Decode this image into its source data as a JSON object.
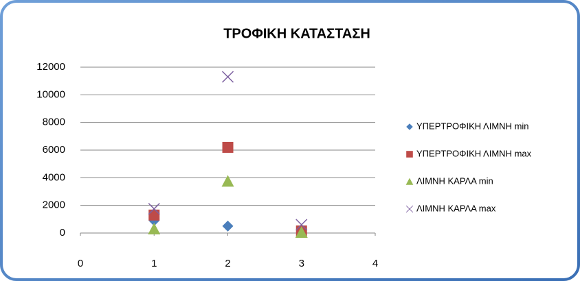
{
  "chart_data": {
    "type": "scatter",
    "title": "ΤΡΟΦΙΚΗ ΚΑΤΑΣΤΑΣΗ",
    "x": [
      1,
      2,
      3
    ],
    "series": [
      {
        "name": "ΥΠΕΡΤΡΟΦΙΚΗ ΛΙΜΝΗ min",
        "color": "#4a7ebb",
        "marker": "diamond",
        "values": [
          900,
          500,
          50
        ]
      },
      {
        "name": "ΥΠΕΡΤΡΟΦΙΚΗ ΛΙΜΝΗ max",
        "color": "#be4b48",
        "marker": "square",
        "values": [
          1300,
          6200,
          150
        ]
      },
      {
        "name": "ΛΙΜΝΗ ΚΑΡΛΑ min",
        "color": "#98b954",
        "marker": "triangle",
        "values": [
          300,
          3750,
          50
        ]
      },
      {
        "name": "ΛΙΜΝΗ ΚΑΡΛΑ max",
        "color": "#7d60a0",
        "marker": "x",
        "values": [
          1750,
          11300,
          600
        ]
      }
    ],
    "xlim": [
      0,
      4
    ],
    "xticks": [
      0,
      1,
      2,
      3,
      4
    ],
    "ylim": [
      0,
      12000
    ],
    "yticks": [
      0,
      2000,
      4000,
      6000,
      8000,
      10000,
      12000
    ],
    "grid": true,
    "legend": "right"
  }
}
